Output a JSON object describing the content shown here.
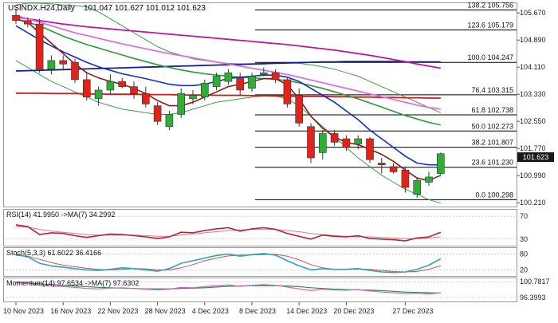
{
  "header": {
    "symbol": "USINDX.H24,Daily",
    "ohlc": "101.047 101.627 101.012 101.623"
  },
  "price_axis": {
    "ticks": [
      "105.670",
      "104.890",
      "104.110",
      "103.330",
      "102.550",
      "101.770",
      "100.990",
      "100.210"
    ],
    "current": "101.623"
  },
  "fib_levels": [
    {
      "label": "138.2 105.756",
      "value": 105.756
    },
    {
      "label": "123.6 105.179",
      "value": 105.179
    },
    {
      "label": "100.0 104.247",
      "value": 104.247
    },
    {
      "label": "76.4 103.315",
      "value": 103.315
    },
    {
      "label": "61.8 102.738",
      "value": 102.738
    },
    {
      "label": "50.0 102.273",
      "value": 102.273
    },
    {
      "label": "38.2 101.807",
      "value": 101.807
    },
    {
      "label": "23.6 101.230",
      "value": 101.23
    },
    {
      "label": "0.0 100.298",
      "value": 100.298
    }
  ],
  "x_axis": {
    "labels": [
      "10 Nov 2023",
      "16 Nov 2023",
      "22 Nov 2023",
      "28 Nov 2023",
      "4 Dec 2023",
      "8 Dec 2023",
      "14 Dec 2023",
      "20 Dec 2023",
      "27 Dec 2023"
    ]
  },
  "rsi": {
    "title": "RSI(14) 41.9950 ->MA(7) 34.2992",
    "ticks": [
      "70",
      "30"
    ]
  },
  "stoch": {
    "title": "Stoch(5,3,3) 61.6022 36.4166",
    "ticks": [
      "80",
      "20"
    ]
  },
  "momentum": {
    "title": "Momentum(14) 97.6534 ->MA(7) 97.6302",
    "ticks": [
      "100.7817",
      "96.3993"
    ]
  },
  "colors": {
    "up": "#2eae34",
    "down": "#e2231a",
    "ma_blue": "#1030c8",
    "ma_darkred": "#8b1a1a",
    "ma_green": "#2a9a3a",
    "ma_pink": "#e070d8",
    "ma_magenta": "#c0189c",
    "ma_navy": "#102090",
    "ma_red": "#cc1a1a",
    "bollinger": "#3c9c46",
    "rsi": "#b2243a",
    "rsi_ma": "#e67a7a",
    "stoch_k": "#2aa7b8",
    "stoch_d": "#d05050",
    "momentum": "#d060c8",
    "momentum_ma": "#2b8c3c"
  },
  "chart_data": {
    "type": "candlestick",
    "title": "USINDX.H24,Daily",
    "ylim": [
      100.1,
      105.95
    ],
    "candles": [
      {
        "o": 105.6,
        "h": 105.8,
        "l": 105.35,
        "c": 105.45
      },
      {
        "o": 105.45,
        "h": 105.55,
        "l": 105.25,
        "c": 105.35
      },
      {
        "o": 105.35,
        "h": 105.5,
        "l": 103.95,
        "c": 104.05
      },
      {
        "o": 104.05,
        "h": 104.45,
        "l": 103.9,
        "c": 104.3
      },
      {
        "o": 104.3,
        "h": 104.45,
        "l": 104.05,
        "c": 104.2
      },
      {
        "o": 104.25,
        "h": 104.35,
        "l": 103.65,
        "c": 103.75
      },
      {
        "o": 103.75,
        "h": 103.95,
        "l": 103.15,
        "c": 103.25
      },
      {
        "o": 103.2,
        "h": 103.55,
        "l": 103.0,
        "c": 103.45
      },
      {
        "o": 103.45,
        "h": 103.9,
        "l": 103.35,
        "c": 103.7
      },
      {
        "o": 103.7,
        "h": 103.8,
        "l": 103.5,
        "c": 103.55
      },
      {
        "o": 103.55,
        "h": 103.7,
        "l": 103.2,
        "c": 103.35
      },
      {
        "o": 103.35,
        "h": 103.55,
        "l": 102.95,
        "c": 103.05
      },
      {
        "o": 103.0,
        "h": 103.1,
        "l": 102.45,
        "c": 102.55
      },
      {
        "o": 102.4,
        "h": 102.85,
        "l": 102.3,
        "c": 102.75
      },
      {
        "o": 102.75,
        "h": 103.5,
        "l": 102.65,
        "c": 103.35
      },
      {
        "o": 103.2,
        "h": 103.45,
        "l": 103.05,
        "c": 103.3
      },
      {
        "o": 103.25,
        "h": 103.75,
        "l": 103.15,
        "c": 103.65
      },
      {
        "o": 103.55,
        "h": 103.95,
        "l": 103.45,
        "c": 103.85
      },
      {
        "o": 103.7,
        "h": 104.05,
        "l": 103.6,
        "c": 103.95
      },
      {
        "o": 103.8,
        "h": 103.95,
        "l": 103.3,
        "c": 103.45
      },
      {
        "o": 103.5,
        "h": 103.95,
        "l": 103.4,
        "c": 103.85
      },
      {
        "o": 103.9,
        "h": 104.1,
        "l": 103.85,
        "c": 103.95
      },
      {
        "o": 103.95,
        "h": 104.05,
        "l": 103.65,
        "c": 103.75
      },
      {
        "o": 103.75,
        "h": 103.8,
        "l": 102.95,
        "c": 103.05
      },
      {
        "o": 103.3,
        "h": 103.5,
        "l": 102.4,
        "c": 102.5
      },
      {
        "o": 102.4,
        "h": 102.5,
        "l": 101.35,
        "c": 101.5
      },
      {
        "o": 101.65,
        "h": 102.3,
        "l": 101.45,
        "c": 102.2
      },
      {
        "o": 102.2,
        "h": 102.3,
        "l": 101.85,
        "c": 101.95
      },
      {
        "o": 102.05,
        "h": 102.15,
        "l": 101.7,
        "c": 101.8
      },
      {
        "o": 101.9,
        "h": 102.15,
        "l": 101.75,
        "c": 102.05
      },
      {
        "o": 102.05,
        "h": 102.1,
        "l": 101.35,
        "c": 101.45
      },
      {
        "o": 101.35,
        "h": 101.5,
        "l": 101.05,
        "c": 101.3
      },
      {
        "o": 101.25,
        "h": 101.35,
        "l": 101.05,
        "c": 101.1
      },
      {
        "o": 101.15,
        "h": 101.25,
        "l": 100.5,
        "c": 100.65
      },
      {
        "o": 100.45,
        "h": 100.95,
        "l": 100.35,
        "c": 100.85
      },
      {
        "o": 100.8,
        "h": 101.1,
        "l": 100.7,
        "c": 100.95
      },
      {
        "o": 101.05,
        "h": 101.65,
        "l": 101.01,
        "c": 101.62
      }
    ],
    "ma_blue": [
      105.3,
      105.1,
      104.9,
      104.72,
      104.55,
      104.4,
      104.25,
      104.12,
      104.02,
      103.92,
      103.85,
      103.78,
      103.7,
      103.62,
      103.58,
      103.58,
      103.62,
      103.7,
      103.78,
      103.82,
      103.85,
      103.88,
      103.88,
      103.82,
      103.7,
      103.5,
      103.3,
      103.1,
      102.85,
      102.6,
      102.3,
      102.05,
      101.8,
      101.55,
      101.35,
      101.3,
      101.3
    ],
    "ma_darkred": [
      105.5,
      105.4,
      105.1,
      104.8,
      104.5,
      104.2,
      103.95,
      103.8,
      103.7,
      103.62,
      103.5,
      103.35,
      103.15,
      103.0,
      103.0,
      103.1,
      103.25,
      103.4,
      103.55,
      103.62,
      103.7,
      103.78,
      103.78,
      103.6,
      103.2,
      102.7,
      102.35,
      102.1,
      101.95,
      101.88,
      101.75,
      101.6,
      101.4,
      101.15,
      100.92,
      100.85,
      101.0
    ],
    "ma_green": [
      105.5,
      105.4,
      105.3,
      105.15,
      105.0,
      104.88,
      104.76,
      104.66,
      104.56,
      104.46,
      104.36,
      104.27,
      104.18,
      104.1,
      104.03,
      103.97,
      103.92,
      103.88,
      103.85,
      103.82,
      103.8,
      103.78,
      103.76,
      103.72,
      103.66,
      103.58,
      103.5,
      103.4,
      103.3,
      103.2,
      103.08,
      102.96,
      102.84,
      102.72,
      102.62,
      102.52,
      102.45
    ],
    "ma_pink": [
      105.6,
      105.5,
      105.4,
      105.3,
      105.2,
      105.1,
      105.02,
      104.94,
      104.86,
      104.78,
      104.71,
      104.64,
      104.57,
      104.5,
      104.44,
      104.38,
      104.32,
      104.26,
      104.2,
      104.14,
      104.08,
      104.02,
      103.96,
      103.9,
      103.82,
      103.74,
      103.66,
      103.58,
      103.5,
      103.42,
      103.34,
      103.26,
      103.18,
      103.1,
      103.02,
      102.95,
      102.9
    ],
    "ma_magenta": [
      105.55,
      105.5,
      105.45,
      105.4,
      105.35,
      105.31,
      105.27,
      105.24,
      105.21,
      105.18,
      105.15,
      105.12,
      105.09,
      105.06,
      105.03,
      105.0,
      104.97,
      104.94,
      104.91,
      104.88,
      104.85,
      104.82,
      104.79,
      104.76,
      104.72,
      104.68,
      104.64,
      104.6,
      104.55,
      104.5,
      104.45,
      104.39,
      104.33,
      104.27,
      104.2,
      104.14,
      104.08
    ],
    "ma_navy": [
      104.0,
      104.01,
      104.02,
      104.03,
      104.04,
      104.05,
      104.06,
      104.07,
      104.08,
      104.09,
      104.1,
      104.11,
      104.12,
      104.13,
      104.14,
      104.15,
      104.16,
      104.17,
      104.18,
      104.19,
      104.2,
      104.21,
      104.22,
      104.23,
      104.24,
      104.25,
      104.26,
      104.26,
      104.27,
      104.27,
      104.27,
      104.27,
      104.27,
      104.26,
      104.26,
      104.26,
      104.26
    ],
    "ma_red": [
      103.36,
      103.36,
      103.36,
      103.35,
      103.35,
      103.35,
      103.34,
      103.34,
      103.33,
      103.33,
      103.33,
      103.32,
      103.32,
      103.32,
      103.31,
      103.31,
      103.31,
      103.3,
      103.3,
      103.3,
      103.29,
      103.29,
      103.28,
      103.28,
      103.27,
      103.27,
      103.27,
      103.26,
      103.26,
      103.25,
      103.25,
      103.24,
      103.24,
      103.23,
      103.23,
      103.22,
      103.22
    ],
    "boll_upper": [
      105.9,
      105.95,
      105.95,
      105.93,
      105.9,
      105.88,
      105.85,
      105.7,
      105.5,
      105.3,
      105.1,
      104.9,
      104.7,
      104.55,
      104.45,
      104.35,
      104.3,
      104.25,
      104.22,
      104.2,
      104.2,
      104.2,
      104.22,
      104.23,
      104.22,
      104.18,
      104.12,
      104.05,
      103.95,
      103.85,
      103.7,
      103.55,
      103.4,
      103.25,
      103.1,
      102.95,
      102.8
    ],
    "boll_lower": [
      104.3,
      104.1,
      103.9,
      103.7,
      103.55,
      103.4,
      103.25,
      103.1,
      103.0,
      102.9,
      102.85,
      102.8,
      102.75,
      102.75,
      102.8,
      102.9,
      103.0,
      103.1,
      103.15,
      103.2,
      103.25,
      103.28,
      103.28,
      103.2,
      103.0,
      102.7,
      102.4,
      102.1,
      101.8,
      101.5,
      101.25,
      101.0,
      100.8,
      100.6,
      100.45,
      100.3,
      100.2
    ],
    "rsi": {
      "values": [
        55,
        52,
        38,
        41,
        40,
        36,
        33,
        36,
        39,
        38,
        36,
        34,
        31,
        34,
        42,
        41,
        45,
        48,
        50,
        44,
        48,
        50,
        47,
        40,
        35,
        30,
        37,
        35,
        34,
        36,
        31,
        30,
        29,
        27,
        32,
        34,
        42
      ],
      "ma": [
        52,
        51,
        47,
        44,
        42,
        40,
        38,
        37,
        37,
        37,
        37,
        36,
        35,
        35,
        37,
        39,
        41,
        43,
        45,
        46,
        47,
        47,
        47,
        45,
        43,
        40,
        38,
        36,
        35,
        34,
        34,
        33,
        32,
        31,
        31,
        32,
        34
      ],
      "ylim": [
        20,
        80
      ]
    },
    "stochastic": {
      "k": [
        78,
        70,
        45,
        35,
        30,
        25,
        20,
        18,
        22,
        28,
        25,
        20,
        15,
        25,
        45,
        55,
        65,
        75,
        80,
        72,
        78,
        82,
        76,
        55,
        35,
        20,
        25,
        22,
        22,
        25,
        18,
        12,
        10,
        12,
        22,
        38,
        62
      ],
      "d": [
        75,
        72,
        60,
        48,
        38,
        32,
        26,
        22,
        20,
        22,
        25,
        24,
        20,
        20,
        28,
        40,
        55,
        65,
        73,
        76,
        77,
        78,
        79,
        72,
        58,
        40,
        28,
        22,
        22,
        23,
        22,
        18,
        14,
        12,
        14,
        22,
        36
      ],
      "ylim": [
        0,
        100
      ]
    },
    "momentum": {
      "values": [
        100.6,
        100.4,
        99.8,
        99.6,
        99.4,
        99.2,
        98.9,
        98.8,
        99.0,
        99.1,
        98.9,
        98.7,
        98.5,
        98.7,
        99.2,
        99.1,
        99.4,
        99.7,
        99.9,
        99.5,
        99.8,
        100.0,
        99.8,
        99.3,
        98.8,
        98.3,
        98.7,
        98.5,
        98.4,
        98.6,
        98.2,
        97.9,
        97.7,
        97.5,
        97.6,
        97.4,
        97.65
      ],
      "ma": [
        100.5,
        100.4,
        100.2,
        100.0,
        99.8,
        99.6,
        99.4,
        99.2,
        99.1,
        99.0,
        98.9,
        98.8,
        98.8,
        98.8,
        98.9,
        99.0,
        99.1,
        99.3,
        99.5,
        99.6,
        99.7,
        99.7,
        99.7,
        99.6,
        99.4,
        99.1,
        98.9,
        98.7,
        98.6,
        98.5,
        98.4,
        98.3,
        98.1,
        97.9,
        97.8,
        97.7,
        97.63
      ],
      "ylim": [
        95.5,
        101.5
      ]
    }
  }
}
